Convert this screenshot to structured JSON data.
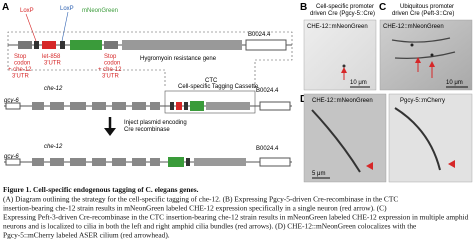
{
  "panel_a": {
    "letter": "A",
    "loxp_1": "LoxP",
    "loxp_2": "LoxP",
    "mneongreen": "mNeonGreen",
    "stop_1": [
      "Stop",
      "codon",
      "+ che-12",
      "3'UTR"
    ],
    "let858": [
      "let-858",
      "3'UTR"
    ],
    "stop_2": [
      "Stop",
      "codon",
      "+ che-12",
      "3'UTR"
    ],
    "b0024_top": "B0024.4",
    "hygro": "Hygromyoin resistance gene",
    "ctc": "CTC",
    "ctc_full": "Cell-specific Tagging Cassette",
    "gcy6_mid": "gcy-6",
    "che12_mid": "che-12",
    "b0024_mid": "B0024.4",
    "inject": [
      "Inject plasmid encoding",
      "Cre recombinase"
    ],
    "gcy6_bot": "gcy-6",
    "che12_bot": "che-12",
    "b0024_bot": "B0024.4"
  },
  "panel_b": {
    "letter": "B",
    "header": [
      "Cell-specific promoter",
      "driven Cre (Pgcy-5::Cre)"
    ],
    "label": "CHE-12::mNeonGreen",
    "scale": "10 μm"
  },
  "panel_c": {
    "letter": "C",
    "header": [
      "Ubiquitous promoter",
      "driven Cre (Peft-3::Cre)"
    ],
    "label": "CHE-12::mNeonGreen",
    "scale": "10 μm"
  },
  "panel_d": {
    "letter": "D",
    "label_left": "CHE-12::mNeonGreen",
    "label_right": "Pgcy-5::mCherry",
    "scale": "5 μm"
  },
  "caption": {
    "title": "Figure 1. Cell-specific endogenous tagging of C. elegans genes.",
    "lines": [
      "(A) Diagram outlining the strategy for the cell-specific tagging of che-12. (B) Expressing Pgcy-5-driven Cre-recombinase in the CTC",
      "insertion-bearing che-12 strain results in mNeonGreen labeled CHE-12 expression specifically in a single neuron (red arrow). (C)",
      "Expressing Peft-3-driven Cre-recombinase in the CTC insertion-bearing che-12 strain results in mNeonGreen labeled CHE-12 expression in multiple amphid",
      "neurons and is localized to cilia in both the left and right amphid cilia bundles (red arrows). (D) CHE-12::mNeonGreen colocalizes with the",
      "Pgcy-5::mCherry labeled ASER cilium (red arrowhead)."
    ]
  }
}
